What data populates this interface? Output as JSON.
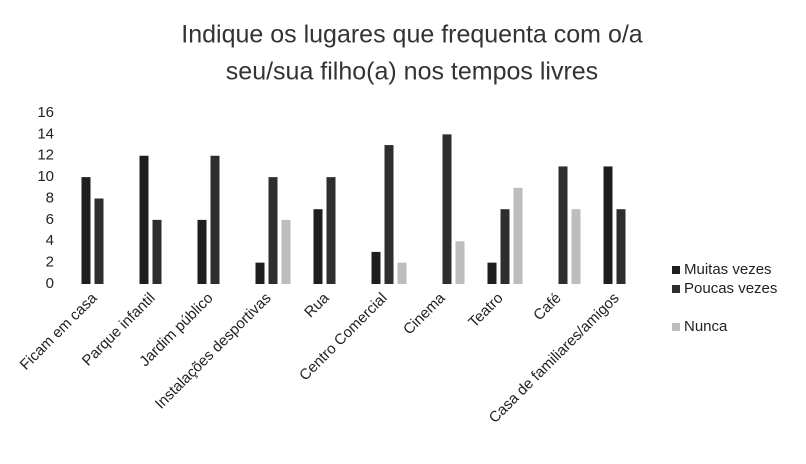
{
  "chart_data": {
    "type": "bar",
    "title": [
      "Indique os lugares que frequenta com o/a",
      "seu/sua filho(a) nos tempos livres"
    ],
    "categories": [
      "Ficam em casa",
      "Parque infantil",
      "Jardim público",
      "Instalações desportivas",
      "Rua",
      "Centro Comercial",
      "Cinema",
      "Teatro",
      "Café",
      "Casa de familiares/amigos"
    ],
    "series": [
      {
        "name": "Muitas vezes",
        "color": "#1e1e1e",
        "values": [
          10,
          12,
          6,
          2,
          7,
          3,
          0,
          2,
          0,
          11
        ]
      },
      {
        "name": "Poucas vezes",
        "color": "#2e2e2e",
        "values": [
          8,
          6,
          12,
          10,
          10,
          13,
          14,
          7,
          11,
          7
        ]
      },
      {
        "name": "Nunca",
        "color": "#bdbdbd",
        "values": [
          0,
          0,
          0,
          6,
          0,
          2,
          4,
          9,
          7,
          0
        ]
      }
    ],
    "ylim": [
      0,
      16
    ],
    "yticks": [
      0,
      2,
      4,
      6,
      8,
      10,
      12,
      14,
      16
    ],
    "grid": false,
    "legend": "right"
  }
}
